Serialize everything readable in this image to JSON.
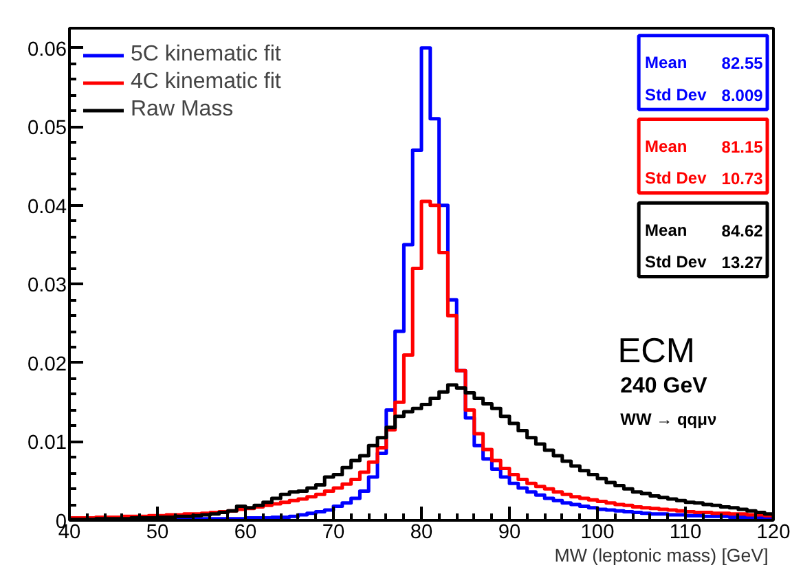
{
  "chart_data": {
    "type": "histogram",
    "xlabel": "MW (leptonic mass)  [GeV]",
    "bins": [
      40,
      41,
      42,
      43,
      44,
      45,
      46,
      47,
      48,
      49,
      50,
      51,
      52,
      53,
      54,
      55,
      56,
      57,
      58,
      59,
      60,
      61,
      62,
      63,
      64,
      65,
      66,
      67,
      68,
      69,
      70,
      71,
      72,
      73,
      74,
      75,
      76,
      77,
      78,
      79,
      80,
      81,
      82,
      83,
      84,
      85,
      86,
      87,
      88,
      89,
      90,
      91,
      92,
      93,
      94,
      95,
      96,
      97,
      98,
      99,
      100,
      101,
      102,
      103,
      104,
      105,
      106,
      107,
      108,
      109,
      110,
      111,
      112,
      113,
      114,
      115,
      116,
      117,
      118,
      119,
      120
    ],
    "series": [
      {
        "name": "5C kinematic fit",
        "color": "#0000ff",
        "values": [
          0.0001,
          0.0001,
          0.0001,
          0.0001,
          0.0001,
          0.0001,
          0.0001,
          0.0001,
          0.0002,
          0.0002,
          0.0002,
          0.0002,
          0.0002,
          0.0002,
          0.0002,
          0.0002,
          0.0002,
          0.0002,
          0.0002,
          0.0002,
          0.0003,
          0.0003,
          0.0003,
          0.0004,
          0.0004,
          0.0005,
          0.0007,
          0.0009,
          0.0011,
          0.0013,
          0.0018,
          0.0022,
          0.0028,
          0.0037,
          0.0055,
          0.0085,
          0.014,
          0.024,
          0.035,
          0.047,
          0.06,
          0.051,
          0.04,
          0.028,
          0.019,
          0.013,
          0.0095,
          0.0078,
          0.0065,
          0.0055,
          0.0047,
          0.0041,
          0.0036,
          0.0032,
          0.0028,
          0.0025,
          0.0022,
          0.002,
          0.0018,
          0.0016,
          0.0014,
          0.0013,
          0.0012,
          0.0011,
          0.001,
          0.0009,
          0.0008,
          0.0008,
          0.0007,
          0.0007,
          0.0006,
          0.0006,
          0.0005,
          0.0005,
          0.0005,
          0.0004,
          0.0004,
          0.0004,
          0.0003,
          0.0003
        ]
      },
      {
        "name": "4C kinematic fit",
        "color": "#ff0000",
        "values": [
          0.0003,
          0.0003,
          0.0003,
          0.0004,
          0.0004,
          0.0004,
          0.0005,
          0.0005,
          0.0005,
          0.0006,
          0.0006,
          0.0007,
          0.0007,
          0.0008,
          0.0008,
          0.0009,
          0.001,
          0.0011,
          0.0012,
          0.0014,
          0.0015,
          0.0017,
          0.0019,
          0.0021,
          0.0023,
          0.0025,
          0.0027,
          0.003,
          0.0033,
          0.0037,
          0.0041,
          0.0046,
          0.0052,
          0.0061,
          0.0074,
          0.0092,
          0.0115,
          0.015,
          0.021,
          0.032,
          0.0405,
          0.04,
          0.034,
          0.026,
          0.019,
          0.014,
          0.011,
          0.009,
          0.0076,
          0.0066,
          0.0058,
          0.0052,
          0.0047,
          0.0043,
          0.004,
          0.0036,
          0.0033,
          0.003,
          0.0028,
          0.0026,
          0.0024,
          0.0022,
          0.002,
          0.0019,
          0.0017,
          0.0016,
          0.0015,
          0.0014,
          0.0013,
          0.0012,
          0.0011,
          0.001,
          0.001,
          0.0009,
          0.0009,
          0.0008,
          0.0008,
          0.0007,
          0.0007,
          0.0006
        ]
      },
      {
        "name": "Raw Mass",
        "color": "#000000",
        "values": [
          0.0001,
          0.0001,
          0.0001,
          0.0002,
          0.0002,
          0.0002,
          0.0002,
          0.0003,
          0.0003,
          0.0003,
          0.0004,
          0.0004,
          0.0005,
          0.0005,
          0.0006,
          0.0007,
          0.0008,
          0.001,
          0.0012,
          0.0018,
          0.0016,
          0.0019,
          0.0023,
          0.0028,
          0.0033,
          0.0036,
          0.0037,
          0.0041,
          0.0045,
          0.0055,
          0.0058,
          0.0067,
          0.0076,
          0.0082,
          0.0095,
          0.0105,
          0.0118,
          0.0132,
          0.0138,
          0.0142,
          0.0147,
          0.0155,
          0.0163,
          0.0172,
          0.0168,
          0.0162,
          0.0155,
          0.0148,
          0.0142,
          0.0132,
          0.0123,
          0.0114,
          0.0105,
          0.0097,
          0.0089,
          0.0082,
          0.0075,
          0.0069,
          0.0063,
          0.0058,
          0.0053,
          0.0048,
          0.0044,
          0.004,
          0.0036,
          0.0034,
          0.0031,
          0.0029,
          0.0027,
          0.0025,
          0.0023,
          0.0022,
          0.002,
          0.0019,
          0.0017,
          0.0016,
          0.0014,
          0.0012,
          0.001,
          0.0008
        ]
      }
    ],
    "xlim": [
      40,
      120
    ],
    "xticks": [
      40,
      50,
      60,
      70,
      80,
      90,
      100,
      110,
      120
    ],
    "ylim": [
      0,
      0.0625
    ],
    "yticks": [
      {
        "value": 0,
        "label": "0"
      },
      0.01,
      0.02,
      0.03,
      0.04,
      0.05,
      0.06
    ],
    "grid": false,
    "legend": "top left",
    "annotations": [
      "Mean 82.55",
      "Std Dev 8.009",
      "Mean 81.15",
      "Std Dev 10.73",
      "Mean 84.62",
      "Std Dev 13.27",
      "ECM",
      "240 GeV",
      "WW → qqμν"
    ]
  }
}
